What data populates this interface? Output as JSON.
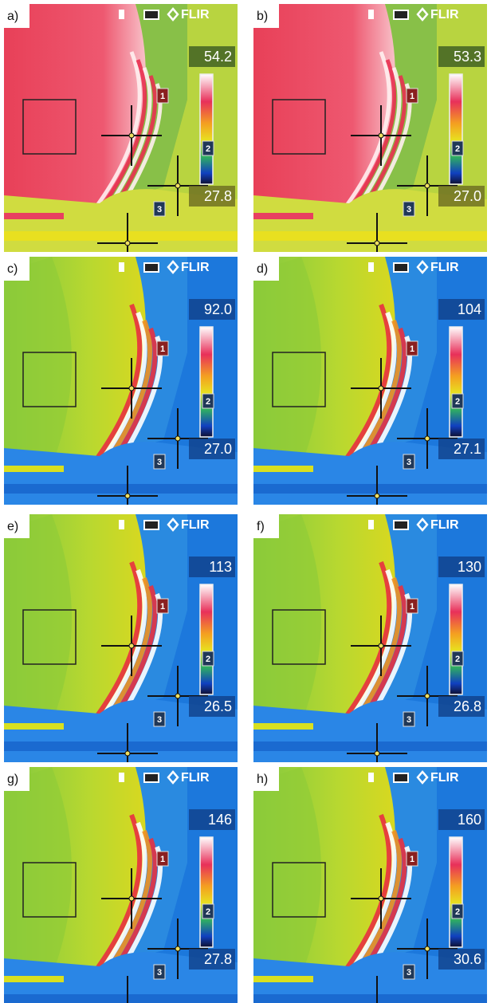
{
  "panels": [
    {
      "label": "a)",
      "brand": "FLIR",
      "max": "54.2",
      "min": "27.8",
      "spots": [
        "1",
        "2",
        "3"
      ]
    },
    {
      "label": "b)",
      "brand": "FLIR",
      "max": "53.3",
      "min": "27.0",
      "spots": [
        "1",
        "2",
        "3"
      ]
    },
    {
      "label": "c)",
      "brand": "FLIR",
      "max": "92.0",
      "min": "27.0",
      "spots": [
        "1",
        "2",
        "3"
      ]
    },
    {
      "label": "d)",
      "brand": "FLIR",
      "max": "104",
      "min": "27.1",
      "spots": [
        "1",
        "2",
        "3"
      ]
    },
    {
      "label": "e)",
      "brand": "FLIR",
      "max": "113",
      "min": "26.5",
      "spots": [
        "1",
        "2",
        "3"
      ]
    },
    {
      "label": "f)",
      "brand": "FLIR",
      "max": "130",
      "min": "26.8",
      "spots": [
        "1",
        "2",
        "3"
      ]
    },
    {
      "label": "g)",
      "brand": "FLIR",
      "max": "146",
      "min": "27.8",
      "spots": [
        "1",
        "2",
        "3"
      ]
    },
    {
      "label": "h)",
      "brand": "FLIR",
      "max": "160",
      "min": "30.6",
      "spots": [
        "1",
        "2",
        "3"
      ]
    }
  ]
}
